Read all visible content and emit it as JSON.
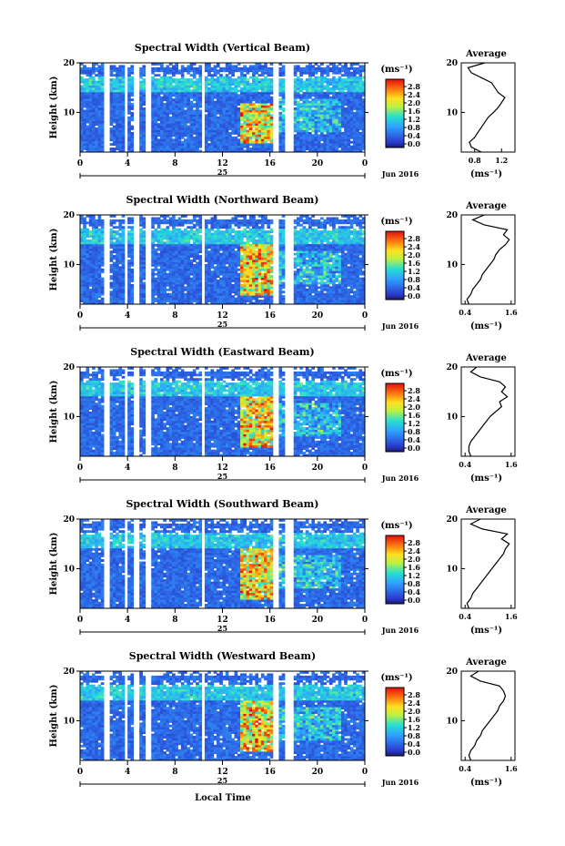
{
  "figure": {
    "xlabel": "Local Time",
    "month_label": "Jun 2016",
    "day_label": "25",
    "unit_label": "(ms⁻¹)",
    "average_title": "Average",
    "colorbar_ticks": [
      "2.8",
      "2.4",
      "2.0",
      "1.6",
      "1.2",
      "0.8",
      "0.4",
      "0.0"
    ],
    "time_ticks": [
      "0",
      "4",
      "8",
      "12",
      "16",
      "20",
      "0"
    ],
    "height_ticks": [
      "20",
      "10"
    ],
    "ylabel": "Height (km)"
  },
  "chart_data": [
    {
      "type": "heatmap",
      "title": "Spectral Width (Vertical Beam)",
      "xlabel": "Local Time",
      "ylabel": "Height (km)",
      "xlim": [
        0,
        24
      ],
      "ylim": [
        2,
        20
      ],
      "colorbar_range": [
        0,
        3.0
      ],
      "data_gaps_hours": [
        [
          2.1,
          2.5
        ],
        [
          3.8,
          4.1
        ],
        [
          4.6,
          4.9
        ],
        [
          5.5,
          5.9
        ],
        [
          10.2,
          10.5
        ],
        [
          16.3,
          16.8
        ],
        [
          17.3,
          17.9
        ]
      ],
      "enhanced_region": {
        "time": [
          13.5,
          16.5
        ],
        "height": [
          4,
          12
        ]
      },
      "average_profile": {
        "xlim": [
          0.6,
          1.4
        ],
        "xticks": [
          "0.8",
          "1.2"
        ],
        "xlabel": "(ms⁻¹)",
        "height_km": [
          2,
          3,
          4,
          5,
          6,
          7,
          8,
          9,
          10,
          11,
          12,
          13,
          14,
          15,
          16,
          17,
          18,
          19,
          20
        ],
        "values": [
          0.9,
          0.75,
          0.72,
          0.8,
          0.85,
          0.9,
          0.95,
          1.0,
          1.08,
          1.15,
          1.2,
          1.25,
          1.15,
          1.1,
          1.05,
          0.9,
          0.75,
          0.7,
          0.95
        ]
      }
    },
    {
      "type": "heatmap",
      "title": "Spectral Width (Northward Beam)",
      "xlabel": "Local Time",
      "ylabel": "Height (km)",
      "xlim": [
        0,
        24
      ],
      "ylim": [
        2,
        20
      ],
      "colorbar_range": [
        0,
        3.0
      ],
      "data_gaps_hours": [
        [
          2.1,
          2.5
        ],
        [
          3.8,
          4.1
        ],
        [
          4.6,
          4.9
        ],
        [
          5.5,
          5.9
        ],
        [
          10.2,
          10.5
        ],
        [
          16.3,
          16.8
        ],
        [
          17.3,
          17.9
        ]
      ],
      "enhanced_region": {
        "time": [
          13.5,
          16.5
        ],
        "height": [
          4,
          14
        ]
      },
      "average_profile": {
        "xlim": [
          0.3,
          1.7
        ],
        "xticks": [
          "0.4",
          "1.6"
        ],
        "xlabel": "(ms⁻¹)",
        "height_km": [
          2,
          3,
          4,
          5,
          6,
          7,
          8,
          9,
          10,
          11,
          12,
          13,
          14,
          15,
          16,
          17,
          18,
          19,
          20
        ],
        "values": [
          0.5,
          0.45,
          0.55,
          0.6,
          0.7,
          0.8,
          0.85,
          0.95,
          1.05,
          1.15,
          1.2,
          1.3,
          1.45,
          1.55,
          1.4,
          1.5,
          0.9,
          0.6,
          0.9
        ]
      }
    },
    {
      "type": "heatmap",
      "title": "Spectral Width (Eastward Beam)",
      "xlabel": "Local Time",
      "ylabel": "Height (km)",
      "xlim": [
        0,
        24
      ],
      "ylim": [
        2,
        20
      ],
      "colorbar_range": [
        0,
        3.0
      ],
      "data_gaps_hours": [
        [
          2.1,
          2.5
        ],
        [
          3.8,
          4.1
        ],
        [
          4.6,
          4.9
        ],
        [
          5.5,
          5.9
        ],
        [
          10.2,
          10.5
        ],
        [
          16.3,
          16.8
        ],
        [
          17.3,
          17.9
        ]
      ],
      "enhanced_region": {
        "time": [
          13.5,
          16.5
        ],
        "height": [
          4,
          14
        ]
      },
      "average_profile": {
        "xlim": [
          0.3,
          1.7
        ],
        "xticks": [
          "0.4",
          "1.6"
        ],
        "xlabel": "(ms⁻¹)",
        "height_km": [
          2,
          3,
          4,
          5,
          6,
          7,
          8,
          9,
          10,
          11,
          12,
          13,
          14,
          15,
          16,
          17,
          18,
          19,
          20
        ],
        "values": [
          0.55,
          0.5,
          0.5,
          0.55,
          0.65,
          0.75,
          0.85,
          0.95,
          1.05,
          1.2,
          1.35,
          1.3,
          1.5,
          1.35,
          1.45,
          1.3,
          0.8,
          0.55,
          0.7
        ]
      }
    },
    {
      "type": "heatmap",
      "title": "Spectral Width (Southward Beam)",
      "xlabel": "Local Time",
      "ylabel": "Height (km)",
      "xlim": [
        0,
        24
      ],
      "ylim": [
        2,
        20
      ],
      "colorbar_range": [
        0,
        3.0
      ],
      "data_gaps_hours": [
        [
          2.1,
          2.5
        ],
        [
          3.8,
          4.1
        ],
        [
          4.6,
          4.9
        ],
        [
          5.5,
          5.9
        ],
        [
          10.2,
          10.5
        ],
        [
          16.3,
          16.8
        ],
        [
          17.3,
          17.9
        ]
      ],
      "enhanced_region": {
        "time": [
          13.5,
          16.5
        ],
        "height": [
          4,
          14
        ]
      },
      "average_profile": {
        "xlim": [
          0.3,
          1.7
        ],
        "xticks": [
          "0.4",
          "1.6"
        ],
        "xlabel": "(ms⁻¹)",
        "height_km": [
          2,
          3,
          4,
          5,
          6,
          7,
          8,
          9,
          10,
          11,
          12,
          13,
          14,
          15,
          16,
          17,
          18,
          19,
          20
        ],
        "values": [
          0.5,
          0.45,
          0.55,
          0.6,
          0.7,
          0.8,
          0.9,
          1.0,
          1.1,
          1.2,
          1.3,
          1.4,
          1.45,
          1.55,
          1.35,
          1.5,
          0.85,
          0.55,
          0.8
        ]
      }
    },
    {
      "type": "heatmap",
      "title": "Spectral Width (Westward Beam)",
      "xlabel": "Local Time",
      "ylabel": "Height (km)",
      "xlim": [
        0,
        24
      ],
      "ylim": [
        2,
        20
      ],
      "colorbar_range": [
        0,
        3.0
      ],
      "data_gaps_hours": [
        [
          2.1,
          2.5
        ],
        [
          3.8,
          4.1
        ],
        [
          4.6,
          4.9
        ],
        [
          5.5,
          5.9
        ],
        [
          10.2,
          10.5
        ],
        [
          16.3,
          16.8
        ],
        [
          17.3,
          17.9
        ]
      ],
      "enhanced_region": {
        "time": [
          13.5,
          16.5
        ],
        "height": [
          4,
          14
        ]
      },
      "average_profile": {
        "xlim": [
          0.3,
          1.7
        ],
        "xticks": [
          "0.4",
          "1.6"
        ],
        "xlabel": "(ms⁻¹)",
        "height_km": [
          2,
          3,
          4,
          5,
          6,
          7,
          8,
          9,
          10,
          11,
          12,
          13,
          14,
          15,
          16,
          17,
          18,
          19,
          20
        ],
        "values": [
          0.55,
          0.5,
          0.55,
          0.65,
          0.7,
          0.8,
          0.85,
          0.95,
          1.05,
          1.15,
          1.25,
          1.3,
          1.4,
          1.45,
          1.4,
          1.3,
          0.8,
          0.55,
          0.75
        ]
      }
    }
  ]
}
